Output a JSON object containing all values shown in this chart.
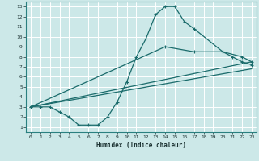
{
  "xlabel": "Humidex (Indice chaleur)",
  "bg_color": "#cce8e8",
  "grid_color": "#aad4d4",
  "line_color": "#1a6b6b",
  "xlim": [
    -0.5,
    23.5
  ],
  "ylim": [
    0.5,
    13.5
  ],
  "xticks": [
    0,
    1,
    2,
    3,
    4,
    5,
    6,
    7,
    8,
    9,
    10,
    11,
    12,
    13,
    14,
    15,
    16,
    17,
    18,
    19,
    20,
    21,
    22,
    23
  ],
  "yticks": [
    1,
    2,
    3,
    4,
    5,
    6,
    7,
    8,
    9,
    10,
    11,
    12,
    13
  ],
  "curve_x": [
    0,
    1,
    2,
    3,
    4,
    5,
    6,
    7,
    8,
    9,
    10,
    11,
    12,
    13,
    14,
    15,
    16,
    17,
    20,
    21,
    22,
    23
  ],
  "curve_y": [
    3,
    3,
    3,
    2.5,
    2,
    1.2,
    1.2,
    1.2,
    2,
    3.5,
    5.5,
    8,
    9.8,
    12.2,
    13,
    13,
    11.5,
    10.8,
    8.5,
    8,
    7.5,
    7.2
  ],
  "line1_x": [
    0,
    14,
    17,
    20,
    22,
    23
  ],
  "line1_y": [
    3,
    9,
    8.5,
    8.5,
    8,
    7.5
  ],
  "line2_x": [
    0,
    23
  ],
  "line2_y": [
    3,
    7.5
  ],
  "line3_x": [
    0,
    23
  ],
  "line3_y": [
    3,
    6.8
  ]
}
